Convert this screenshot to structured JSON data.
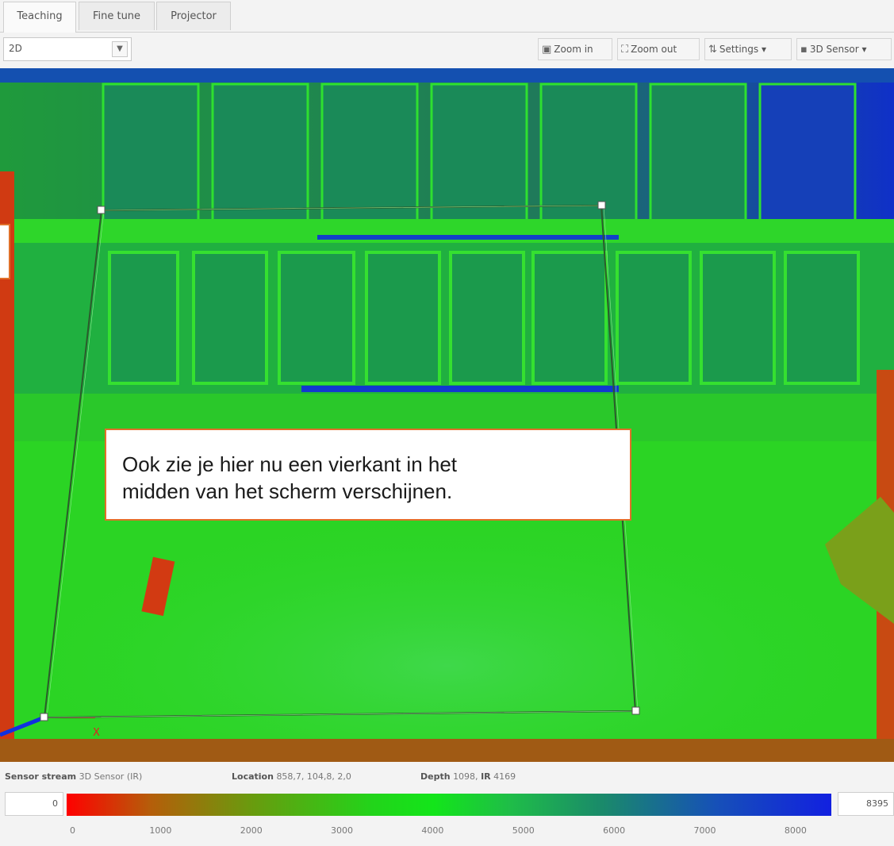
{
  "tabs": [
    {
      "label": "Teaching",
      "active": true
    },
    {
      "label": "Fine tune",
      "active": false
    },
    {
      "label": "Projector",
      "active": false
    }
  ],
  "toolbar": {
    "view_mode": "2D",
    "zoom_in_label": "Zoom in",
    "zoom_out_label": "Zoom out",
    "settings_label": "Settings",
    "sensor_label": "3D Sensor",
    "icons": {
      "zoom_in": "zoom-in-icon",
      "zoom_out": "zoom-out-icon",
      "settings": "sliders-icon",
      "sensor": "camera-icon",
      "dropdown": "chevron-down-icon"
    }
  },
  "callout": {
    "line1": "Ook zie je hier nu een vierkant in het",
    "line2": "midden van het scherm verschijnen."
  },
  "canvas": {
    "axis_marker": "X",
    "colors": {
      "low": "#ff0000",
      "mid": "#22d41a",
      "high": "#1220e0",
      "roi_outline": "#2c5a2c",
      "callout_border": "#e1702a"
    }
  },
  "status": {
    "stream_label": "Sensor stream",
    "stream_value": "3D Sensor (IR)",
    "location_label": "Location",
    "location_value": "858,7, 104,8, 2,0",
    "depth_label": "Depth",
    "depth_value": "1098,",
    "ir_label": "IR",
    "ir_value": "4169"
  },
  "colorbar": {
    "min": "0",
    "max": "8395",
    "ticks": [
      "0",
      "1000",
      "2000",
      "3000",
      "4000",
      "5000",
      "6000",
      "7000",
      "8000"
    ]
  }
}
